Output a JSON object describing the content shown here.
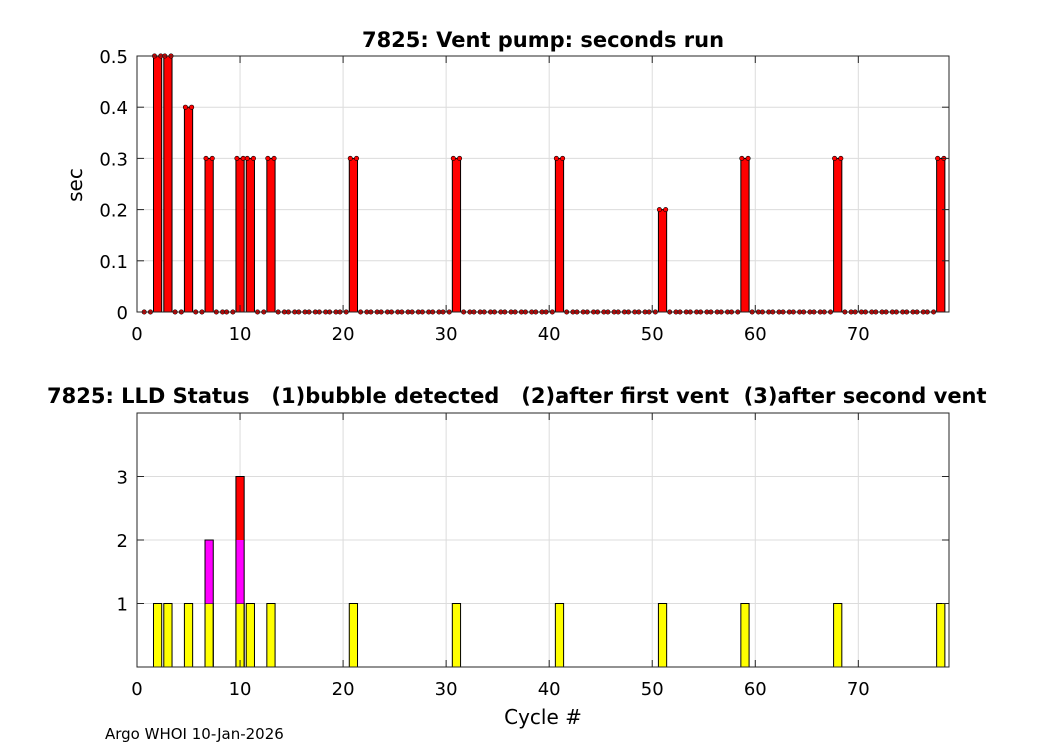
{
  "colors": {
    "vent_bar": "#ff0000",
    "bubble": "#ffff00",
    "after_first_vent": "#ff00ff",
    "after_second_vent": "#ff0000"
  },
  "footer": {
    "text": "Argo WHOI 10-Jan-2026"
  },
  "chart_data": [
    {
      "type": "bar",
      "title": "7825: Vent pump: seconds run",
      "xlabel": "",
      "ylabel": "sec",
      "xlim": [
        0,
        78.8
      ],
      "ylim": [
        0,
        0.5
      ],
      "xticks": [
        0,
        10,
        20,
        30,
        40,
        50,
        60,
        70
      ],
      "yticks": [
        0,
        0.1,
        0.2,
        0.3,
        0.4,
        0.5
      ],
      "grid": true,
      "x": [
        1,
        2,
        3,
        4,
        5,
        6,
        7,
        8,
        9,
        10,
        11,
        12,
        13,
        14,
        15,
        16,
        17,
        18,
        19,
        20,
        21,
        22,
        23,
        24,
        25,
        26,
        27,
        28,
        29,
        30,
        31,
        32,
        33,
        34,
        35,
        36,
        37,
        38,
        39,
        40,
        41,
        42,
        43,
        44,
        45,
        46,
        47,
        48,
        49,
        50,
        51,
        52,
        53,
        54,
        55,
        56,
        57,
        58,
        59,
        60,
        61,
        62,
        63,
        64,
        65,
        66,
        67,
        68,
        69,
        70,
        71,
        72,
        73,
        74,
        75,
        76,
        77,
        78
      ],
      "values": [
        0,
        0.5,
        0.5,
        0,
        0.4,
        0,
        0.3,
        0,
        0,
        0.3,
        0.3,
        0,
        0.3,
        0,
        0,
        0,
        0,
        0,
        0,
        0,
        0.3,
        0,
        0,
        0,
        0,
        0,
        0,
        0,
        0,
        0,
        0.3,
        0,
        0,
        0,
        0,
        0,
        0,
        0,
        0,
        0,
        0.3,
        0,
        0,
        0,
        0,
        0,
        0,
        0,
        0,
        0,
        0.2,
        0,
        0,
        0,
        0,
        0,
        0,
        0,
        0.3,
        0,
        0,
        0,
        0,
        0,
        0,
        0,
        0,
        0.3,
        0,
        0,
        0,
        0,
        0,
        0,
        0,
        0,
        0,
        0.3
      ]
    },
    {
      "type": "bar",
      "title": "7825: LLD Status   (1)bubble detected   (2)after first vent  (3)after second vent",
      "xlabel": "Cycle #",
      "ylabel": "",
      "xlim": [
        0,
        78.8
      ],
      "ylim": [
        0,
        4
      ],
      "xticks": [
        0,
        10,
        20,
        30,
        40,
        50,
        60,
        70
      ],
      "yticks": [
        1,
        2,
        3
      ],
      "grid": true,
      "x": [
        1,
        2,
        3,
        4,
        5,
        6,
        7,
        8,
        9,
        10,
        11,
        12,
        13,
        14,
        15,
        16,
        17,
        18,
        19,
        20,
        21,
        22,
        23,
        24,
        25,
        26,
        27,
        28,
        29,
        30,
        31,
        32,
        33,
        34,
        35,
        36,
        37,
        38,
        39,
        40,
        41,
        42,
        43,
        44,
        45,
        46,
        47,
        48,
        49,
        50,
        51,
        52,
        53,
        54,
        55,
        56,
        57,
        58,
        59,
        60,
        61,
        62,
        63,
        64,
        65,
        66,
        67,
        68,
        69,
        70,
        71,
        72,
        73,
        74,
        75,
        76,
        77,
        78
      ],
      "values": [
        0,
        1,
        1,
        0,
        1,
        0,
        2,
        0,
        0,
        3,
        1,
        0,
        1,
        0,
        0,
        0,
        0,
        0,
        0,
        0,
        1,
        0,
        0,
        0,
        0,
        0,
        0,
        0,
        0,
        0,
        1,
        0,
        0,
        0,
        0,
        0,
        0,
        0,
        0,
        0,
        1,
        0,
        0,
        0,
        0,
        0,
        0,
        0,
        0,
        0,
        1,
        0,
        0,
        0,
        0,
        0,
        0,
        0,
        1,
        0,
        0,
        0,
        0,
        0,
        0,
        0,
        0,
        1,
        0,
        0,
        0,
        0,
        0,
        0,
        0,
        0,
        0,
        1
      ]
    }
  ]
}
